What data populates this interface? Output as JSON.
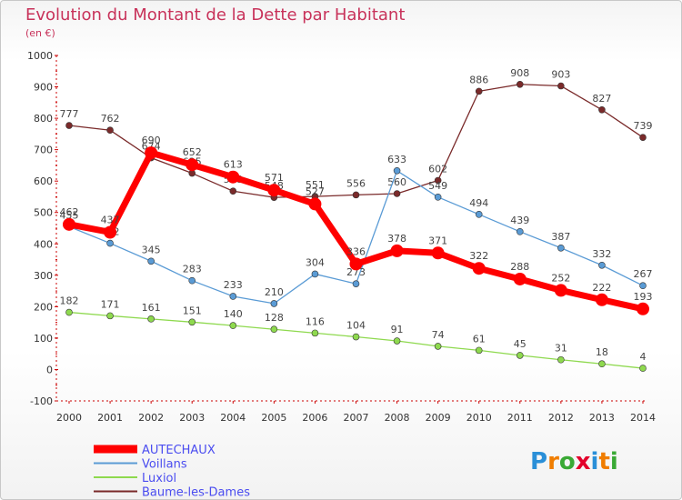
{
  "title": "Evolution du Montant de la Dette par Habitant",
  "unit": "(en €)",
  "logo": "Proxiti",
  "colors": {
    "title": "#c8325a",
    "axis": "#cc0000",
    "legend_text": "#4a4cf0"
  },
  "chart_data": {
    "type": "line",
    "title": "Evolution du Montant de la Dette par Habitant",
    "ylabel": "(en €)",
    "xlabel": "",
    "x": [
      2000,
      2001,
      2002,
      2003,
      2004,
      2005,
      2006,
      2007,
      2008,
      2009,
      2010,
      2011,
      2012,
      2013,
      2014
    ],
    "ylim": [
      -100,
      1000
    ],
    "yticks": [
      -100,
      0,
      100,
      200,
      300,
      400,
      500,
      600,
      700,
      800,
      900,
      1000
    ],
    "grid": false,
    "legend_position": "bottom-left",
    "series": [
      {
        "name": "AUTECHAUX",
        "color": "#ff0000",
        "values": [
          462,
          437,
          690,
          652,
          613,
          571,
          527,
          336,
          378,
          371,
          322,
          288,
          252,
          222,
          193
        ]
      },
      {
        "name": "Voillans",
        "color": "#5a9bd5",
        "values": [
          455,
          402,
          345,
          283,
          233,
          210,
          304,
          273,
          633,
          549,
          494,
          439,
          387,
          332,
          267
        ]
      },
      {
        "name": "Luxiol",
        "color": "#8ed94e",
        "values": [
          182,
          171,
          161,
          151,
          140,
          128,
          116,
          104,
          91,
          74,
          61,
          45,
          31,
          18,
          4
        ]
      },
      {
        "name": "Baume-les-Dames",
        "color": "#7a2a2a",
        "values": [
          777,
          762,
          674,
          625,
          568,
          548,
          551,
          556,
          560,
          602,
          886,
          908,
          903,
          827,
          739
        ]
      }
    ]
  }
}
